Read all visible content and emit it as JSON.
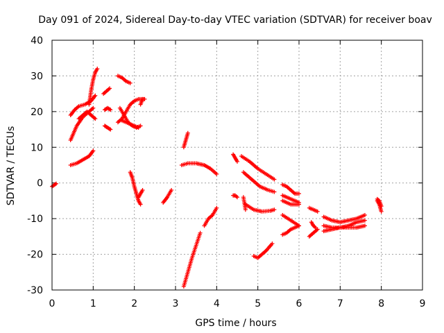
{
  "chart_data": {
    "type": "scatter",
    "title": "Day 091 of 2024, Sidereal Day-to-day VTEC variation (SDTVAR) for receiver boav",
    "xlabel": "GPS time / hours",
    "ylabel": "SDTVAR / TECUs",
    "xlim": [
      0,
      9
    ],
    "ylim": [
      -30,
      40
    ],
    "xticks": [
      "0",
      "1",
      "2",
      "3",
      "4",
      "5",
      "6",
      "7",
      "8",
      "9"
    ],
    "yticks": [
      "-30",
      "-20",
      "-10",
      "0",
      "10",
      "20",
      "30",
      "40"
    ],
    "grid": true,
    "marker": "+",
    "color": "#ff0000",
    "arcs": [
      {
        "x": [
          0.0,
          0.05,
          0.1
        ],
        "y": [
          -1.0,
          -0.6,
          -0.2
        ]
      },
      {
        "x": [
          0.45,
          0.6,
          0.75,
          0.9,
          1.0
        ],
        "y": [
          12,
          16,
          18.5,
          20,
          21
        ]
      },
      {
        "x": [
          0.45,
          0.55,
          0.65,
          0.8,
          0.95,
          1.05
        ],
        "y": [
          19,
          20.5,
          21.5,
          22,
          23,
          24.5
        ]
      },
      {
        "x": [
          0.45,
          0.6,
          0.75,
          0.9,
          1.0
        ],
        "y": [
          5,
          5.5,
          6.5,
          7.5,
          9
        ]
      },
      {
        "x": [
          0.65,
          0.75,
          0.85,
          0.95,
          1.05
        ],
        "y": [
          18,
          19,
          20,
          19,
          18
        ]
      },
      {
        "x": [
          0.9,
          0.95,
          1.0,
          1.05,
          1.1
        ],
        "y": [
          22,
          26,
          29,
          31,
          32
        ]
      },
      {
        "x": [
          1.25,
          1.3,
          1.35,
          1.4
        ],
        "y": [
          25,
          25.5,
          26,
          26.5
        ]
      },
      {
        "x": [
          1.28,
          1.35,
          1.42
        ],
        "y": [
          20.5,
          21,
          20.5
        ]
      },
      {
        "x": [
          1.28,
          1.35,
          1.42
        ],
        "y": [
          16,
          15.5,
          15
        ]
      },
      {
        "x": [
          1.6,
          1.7,
          1.8,
          1.9
        ],
        "y": [
          30,
          29.5,
          28.5,
          28
        ]
      },
      {
        "x": [
          1.6,
          1.7,
          1.8,
          1.9,
          2.0,
          2.1,
          2.2
        ],
        "y": [
          17,
          18,
          20,
          22,
          23,
          23.5,
          23.5
        ]
      },
      {
        "x": [
          1.65,
          1.75,
          1.85,
          1.95,
          2.05,
          2.15
        ],
        "y": [
          21,
          19,
          17,
          16,
          15.5,
          16
        ]
      },
      {
        "x": [
          1.7,
          1.8,
          1.9,
          2.0,
          2.1
        ],
        "y": [
          17.5,
          17,
          16.5,
          16,
          15.5
        ]
      },
      {
        "x": [
          2.15,
          2.2,
          2.25
        ],
        "y": [
          22,
          23.5,
          23.5
        ]
      },
      {
        "x": [
          1.9,
          1.95,
          2.0,
          2.05,
          2.1,
          2.15
        ],
        "y": [
          3,
          1.5,
          -1,
          -3,
          -5,
          -6
        ]
      },
      {
        "x": [
          2.1,
          2.15,
          2.2
        ],
        "y": [
          -4,
          -3,
          -2
        ]
      },
      {
        "x": [
          2.7,
          2.8,
          2.9
        ],
        "y": [
          -5.5,
          -4,
          -2
        ]
      },
      {
        "x": [
          3.2,
          3.25,
          3.3
        ],
        "y": [
          10,
          12,
          14
        ]
      },
      {
        "x": [
          3.15,
          3.3,
          3.5,
          3.7,
          3.85,
          4.0
        ],
        "y": [
          5,
          5.5,
          5.5,
          5,
          4,
          2.5
        ]
      },
      {
        "x": [
          3.2,
          3.3,
          3.4,
          3.5,
          3.6
        ],
        "y": [
          -29,
          -25,
          -21,
          -17.5,
          -14
        ]
      },
      {
        "x": [
          3.7,
          3.8,
          3.9,
          4.0
        ],
        "y": [
          -12,
          -10,
          -9,
          -7
        ]
      },
      {
        "x": [
          4.4,
          4.45,
          4.5
        ],
        "y": [
          8,
          7,
          6
        ]
      },
      {
        "x": [
          4.4,
          4.45,
          4.5
        ],
        "y": [
          -3.5,
          -3.5,
          -4
        ]
      },
      {
        "x": [
          4.65,
          4.7
        ],
        "y": [
          -4,
          -7.5
        ]
      },
      {
        "x": [
          4.6,
          4.8,
          5.0,
          5.2,
          5.4
        ],
        "y": [
          7.5,
          6,
          4,
          2.5,
          1
        ]
      },
      {
        "x": [
          4.65,
          4.85,
          5.05,
          5.25,
          5.4
        ],
        "y": [
          3,
          1,
          -1,
          -2,
          -2.5
        ]
      },
      {
        "x": [
          4.7,
          4.9,
          5.1,
          5.3,
          5.4
        ],
        "y": [
          -6,
          -7.5,
          -8,
          -7.8,
          -7.5
        ]
      },
      {
        "x": [
          4.9,
          5.0,
          5.1,
          5.2,
          5.35
        ],
        "y": [
          -20.5,
          -21,
          -20,
          -19,
          -17
        ]
      },
      {
        "x": [
          5.6,
          5.7,
          5.8,
          5.9,
          6.0
        ],
        "y": [
          -0.5,
          -1,
          -2,
          -3,
          -3
        ]
      },
      {
        "x": [
          5.6,
          5.7,
          5.8,
          5.9,
          6.0
        ],
        "y": [
          -3.5,
          -4,
          -4.5,
          -5,
          -5.5
        ]
      },
      {
        "x": [
          5.6,
          5.7,
          5.8,
          5.9,
          6.0
        ],
        "y": [
          -5,
          -5.5,
          -6,
          -6,
          -6
        ]
      },
      {
        "x": [
          5.6,
          5.8,
          6.0
        ],
        "y": [
          -9,
          -10.5,
          -12
        ]
      },
      {
        "x": [
          5.6,
          5.7,
          5.8,
          5.9,
          6.0
        ],
        "y": [
          -14.5,
          -14,
          -13,
          -12.5,
          -12
        ]
      },
      {
        "x": [
          6.25,
          6.35,
          6.45
        ],
        "y": [
          -7,
          -7.5,
          -8
        ]
      },
      {
        "x": [
          6.3,
          6.35,
          6.4
        ],
        "y": [
          -11,
          -12,
          -12.5
        ]
      },
      {
        "x": [
          6.25,
          6.35,
          6.45
        ],
        "y": [
          -15,
          -14,
          -13
        ]
      },
      {
        "x": [
          6.6,
          6.8,
          7.0,
          7.2,
          7.4,
          7.6
        ],
        "y": [
          -9.5,
          -10.5,
          -11,
          -10.5,
          -10,
          -9
        ]
      },
      {
        "x": [
          6.6,
          6.8,
          7.0,
          7.2,
          7.4,
          7.6
        ],
        "y": [
          -12,
          -12.5,
          -12.5,
          -12,
          -11,
          -10.5
        ]
      },
      {
        "x": [
          6.6,
          6.8,
          7.0,
          7.2,
          7.4,
          7.6
        ],
        "y": [
          -13.5,
          -13,
          -12.5,
          -12.5,
          -12.5,
          -12
        ]
      },
      {
        "x": [
          7.9,
          7.95,
          8.0
        ],
        "y": [
          -5,
          -6,
          -8
        ]
      },
      {
        "x": [
          7.9,
          7.95,
          8.0
        ],
        "y": [
          -4.5,
          -5,
          -6.5
        ]
      }
    ]
  }
}
